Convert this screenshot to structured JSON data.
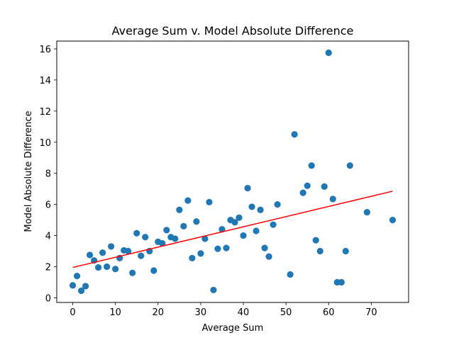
{
  "chart_data": {
    "type": "scatter",
    "title": "Average Sum v. Model Absolute Difference",
    "xlabel": "Average Sum",
    "ylabel": "Model Absolute Difference",
    "xlim": [
      -3.75,
      78.75
    ],
    "ylim": [
      -0.3,
      16.5
    ],
    "xticks": [
      0,
      10,
      20,
      30,
      40,
      50,
      60,
      70
    ],
    "yticks": [
      0,
      2,
      4,
      6,
      8,
      10,
      12,
      14,
      16
    ],
    "grid": false,
    "colors": {
      "points": "#1f77b4",
      "fit_line": "#ff0000"
    },
    "series": [
      {
        "values": [
          [
            0,
            0.8
          ],
          [
            1,
            1.4
          ],
          [
            2,
            0.45
          ],
          [
            3,
            0.75
          ],
          [
            4,
            2.75
          ],
          [
            5,
            2.4
          ],
          [
            6,
            1.95
          ],
          [
            7,
            2.9
          ],
          [
            8,
            2.0
          ],
          [
            9,
            3.3
          ],
          [
            10,
            1.85
          ],
          [
            11,
            2.55
          ],
          [
            12,
            3.05
          ],
          [
            13,
            3.0
          ],
          [
            14,
            1.6
          ],
          [
            15,
            4.15
          ],
          [
            16,
            2.7
          ],
          [
            17,
            3.9
          ],
          [
            18,
            3.0
          ],
          [
            19,
            1.75
          ],
          [
            20,
            3.6
          ],
          [
            21,
            3.5
          ],
          [
            22,
            4.35
          ],
          [
            23,
            3.9
          ],
          [
            24,
            3.8
          ],
          [
            25,
            5.65
          ],
          [
            26,
            4.6
          ],
          [
            27,
            6.25
          ],
          [
            28,
            2.55
          ],
          [
            29,
            4.9
          ],
          [
            30,
            2.85
          ],
          [
            31,
            3.8
          ],
          [
            32,
            6.15
          ],
          [
            33,
            0.5
          ],
          [
            34,
            3.15
          ],
          [
            35,
            4.4
          ],
          [
            36,
            3.2
          ],
          [
            37,
            5.0
          ],
          [
            38,
            4.85
          ],
          [
            39,
            5.15
          ],
          [
            40,
            4.0
          ],
          [
            41,
            7.05
          ],
          [
            42,
            5.85
          ],
          [
            43,
            4.3
          ],
          [
            44,
            5.65
          ],
          [
            45,
            3.2
          ],
          [
            46,
            2.65
          ],
          [
            47,
            4.7
          ],
          [
            48,
            6.0
          ],
          [
            51,
            1.5
          ],
          [
            52,
            10.5
          ],
          [
            54,
            6.75
          ],
          [
            55,
            7.2
          ],
          [
            56,
            8.5
          ],
          [
            57,
            3.7
          ],
          [
            58,
            3.0
          ],
          [
            59,
            7.15
          ],
          [
            60,
            15.75
          ],
          [
            61,
            6.35
          ],
          [
            62,
            1.0
          ],
          [
            63,
            1.0
          ],
          [
            64,
            3.0
          ],
          [
            65,
            8.5
          ],
          [
            69,
            5.5
          ],
          [
            75,
            5.0
          ]
        ]
      }
    ],
    "fit_line": {
      "x": [
        0,
        75
      ],
      "y": [
        1.95,
        6.85
      ]
    }
  }
}
